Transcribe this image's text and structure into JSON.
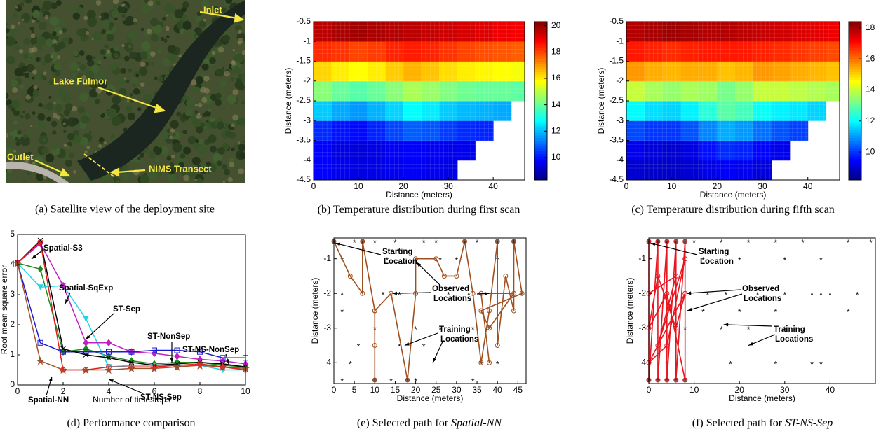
{
  "image": {
    "labels": [
      "Inlet",
      "Lake Fulmor",
      "Outlet",
      "NIMS Transect"
    ],
    "caption": "(a) Satellite view of the deployment site"
  },
  "chart_data": [
    {
      "type": "heatmap",
      "caption": "(b) Temperature distribution during first scan",
      "x_label": "Distance (meters)",
      "y_label": "Distance (meters)",
      "xlim": [
        0,
        47
      ],
      "ylim": [
        -4.5,
        -0.5
      ],
      "xticks": [
        0,
        10,
        20,
        30,
        40
      ],
      "yticks": [
        -4.5,
        -4,
        -3.5,
        -3,
        -2.5,
        -2,
        -1.5,
        -1,
        -0.5
      ],
      "clim": [
        8.3,
        20.3
      ],
      "cticks": [
        10,
        12,
        14,
        16,
        18,
        20
      ],
      "colormap": "jet",
      "x_edges": [
        0,
        4,
        8,
        12,
        16,
        20,
        24,
        28,
        32,
        36,
        40,
        44,
        47
      ],
      "y_edges": [
        -4.5,
        -4,
        -3.5,
        -3,
        -2.5,
        -2,
        -1.5,
        -1,
        -0.5
      ],
      "values": [
        [
          9.8,
          9.6,
          9.5,
          9.5,
          9.6,
          9.7,
          9.6,
          9.5,
          null,
          null,
          null,
          null
        ],
        [
          9.8,
          9.5,
          9.4,
          9.5,
          9.7,
          9.8,
          9.7,
          9.6,
          9.6,
          null,
          null,
          null
        ],
        [
          10.3,
          10.0,
          9.9,
          10.2,
          10.6,
          10.9,
          10.8,
          10.5,
          10.3,
          10.2,
          null,
          null
        ],
        [
          12.2,
          11.8,
          11.6,
          11.9,
          12.3,
          12.8,
          12.6,
          12.2,
          12.0,
          11.9,
          11.8,
          null
        ],
        [
          14.4,
          14.0,
          13.8,
          14.0,
          14.4,
          14.8,
          14.6,
          14.3,
          14.1,
          14.0,
          14.0,
          13.9
        ],
        [
          16.3,
          16.0,
          15.8,
          16.0,
          16.4,
          16.7,
          16.5,
          16.2,
          16.0,
          15.9,
          15.8,
          15.7
        ],
        [
          18.3,
          18.2,
          18.0,
          18.1,
          18.4,
          18.5,
          18.4,
          18.2,
          18.0,
          17.9,
          17.8,
          17.7
        ],
        [
          19.6,
          19.8,
          19.9,
          19.8,
          19.7,
          19.6,
          19.5,
          19.4,
          19.3,
          19.2,
          19.0,
          18.9
        ]
      ]
    },
    {
      "type": "heatmap",
      "caption": "(c) Temperature distribution during fifth scan",
      "x_label": "Distance (meters)",
      "y_label": "Distance (meters)",
      "xlim": [
        0,
        47
      ],
      "ylim": [
        -4.5,
        -0.5
      ],
      "xticks": [
        0,
        10,
        20,
        30,
        40
      ],
      "yticks": [
        -4.5,
        -4,
        -3.5,
        -3,
        -2.5,
        -2,
        -1.5,
        -1,
        -0.5
      ],
      "clim": [
        8.2,
        18.4
      ],
      "cticks": [
        10,
        12,
        14,
        16,
        18
      ],
      "colormap": "jet",
      "x_edges": [
        0,
        4,
        8,
        12,
        16,
        20,
        24,
        28,
        32,
        36,
        40,
        44,
        47
      ],
      "y_edges": [
        -4.5,
        -4,
        -3.5,
        -3,
        -2.5,
        -2,
        -1.5,
        -1,
        -0.5
      ],
      "values": [
        [
          9.0,
          8.9,
          8.9,
          9.0,
          9.2,
          9.4,
          9.3,
          9.1,
          null,
          null,
          null,
          null
        ],
        [
          9.3,
          9.1,
          9.0,
          9.2,
          9.6,
          9.9,
          9.8,
          9.5,
          9.3,
          null,
          null,
          null
        ],
        [
          10.2,
          10.0,
          10.0,
          10.3,
          10.8,
          11.2,
          11.0,
          10.6,
          10.3,
          10.1,
          null,
          null
        ],
        [
          12.0,
          11.7,
          11.6,
          11.9,
          12.4,
          12.9,
          12.7,
          12.1,
          11.9,
          11.8,
          11.6,
          null
        ],
        [
          14.0,
          13.7,
          13.5,
          13.7,
          13.6,
          13.2,
          13.5,
          14.0,
          14.0,
          13.9,
          13.8,
          13.7
        ],
        [
          15.6,
          15.4,
          15.3,
          15.4,
          15.4,
          15.2,
          15.3,
          15.6,
          15.5,
          15.4,
          15.3,
          15.2
        ],
        [
          16.9,
          16.8,
          16.7,
          16.8,
          16.9,
          16.9,
          16.9,
          16.8,
          16.7,
          16.6,
          16.5,
          16.4
        ],
        [
          17.9,
          18.0,
          18.1,
          18.0,
          17.9,
          17.9,
          17.8,
          17.7,
          17.6,
          17.5,
          17.4,
          17.3
        ]
      ]
    },
    {
      "type": "line",
      "caption": "(d) Performance comparison",
      "x_label": "Number of timesteps",
      "y_label": "Root mean square error",
      "x": [
        0,
        1,
        2,
        3,
        4,
        5,
        6,
        7,
        8,
        9,
        10
      ],
      "xlim": [
        0,
        10
      ],
      "ylim": [
        0,
        5
      ],
      "xticks": [
        0,
        2,
        4,
        6,
        8,
        10
      ],
      "yticks": [
        0,
        1,
        2,
        3,
        4,
        5
      ],
      "series": [
        {
          "name": "Spatial-S3",
          "color": "#1e8a1e",
          "marker": "diamond",
          "values": [
            4.05,
            3.85,
            1.1,
            1.2,
            0.95,
            0.8,
            0.7,
            0.75,
            0.75,
            0.65,
            0.6
          ]
        },
        {
          "name": "Spatial-SqExp",
          "color": "#22d3e6",
          "marker": "triangle",
          "values": [
            4.05,
            3.25,
            3.3,
            2.2,
            0.6,
            0.65,
            0.65,
            0.65,
            0.65,
            0.5,
            0.5
          ]
        },
        {
          "name": "ST-Sep",
          "color": "#c020c0",
          "marker": "diamond",
          "values": [
            4.05,
            4.7,
            3.3,
            1.4,
            1.4,
            1.1,
            1.05,
            0.95,
            0.85,
            0.8,
            0.7
          ]
        },
        {
          "name": "ST-NonSep",
          "color": "#1a1ad0",
          "marker": "square",
          "values": [
            4.05,
            1.4,
            1.1,
            1.1,
            1.1,
            1.1,
            1.15,
            1.15,
            1.1,
            0.9,
            0.9
          ]
        },
        {
          "name": "ST-NS-NonSep",
          "color": "#000000",
          "marker": "x",
          "values": [
            4.05,
            4.8,
            1.2,
            1.0,
            0.9,
            0.75,
            0.65,
            0.7,
            0.75,
            0.7,
            0.6
          ]
        },
        {
          "name": "Spatial-NN",
          "color": "#a0522d",
          "marker": "star",
          "values": [
            4.05,
            0.8,
            0.5,
            0.5,
            0.5,
            0.55,
            0.55,
            0.6,
            0.65,
            0.6,
            0.55
          ]
        },
        {
          "name": "ST-NS-Sep",
          "color": "#e02020",
          "marker": "circle",
          "values": [
            4.05,
            4.75,
            0.5,
            0.5,
            0.6,
            0.6,
            0.6,
            0.65,
            0.7,
            0.6,
            0.5
          ]
        }
      ]
    },
    {
      "type": "path",
      "caption": "(e) Selected path for",
      "caption_emphasis": "Spatial-NN",
      "x_label": "Distance (meters)",
      "y_label": "Distance (meters)",
      "xlim": [
        0,
        47
      ],
      "ylim": [
        -4.6,
        -0.4
      ],
      "xticks": [
        0,
        5,
        10,
        15,
        20,
        25,
        30,
        35,
        40,
        45
      ],
      "yticks": [
        -4,
        -3,
        -2,
        -1
      ],
      "annotations": [
        [
          "Starting",
          "Location"
        ],
        [
          "Observed",
          "Locations"
        ],
        [
          "Training",
          "Locations"
        ]
      ],
      "training": {
        "x": [
          5,
          10,
          15,
          22,
          25,
          35,
          44,
          2,
          13,
          26,
          30,
          40,
          2,
          12,
          16,
          28,
          33,
          46,
          2,
          10,
          20,
          26,
          34,
          38,
          6,
          16,
          22,
          4,
          36,
          2,
          14,
          20,
          34,
          40
        ],
        "y": [
          -0.5,
          -0.5,
          -0.5,
          -0.5,
          -0.5,
          -0.5,
          -0.5,
          -1,
          -1,
          -1,
          -1,
          -1,
          -2,
          -2,
          -2,
          -2,
          -2,
          -2,
          -2.5,
          -3,
          -3,
          -3,
          -3,
          -3,
          -3.5,
          -3.5,
          -3.5,
          -4,
          -4,
          -4.5,
          -4.5,
          -4.5,
          -4.5,
          -4
        ]
      },
      "path": {
        "color": "#a0501e",
        "x": [
          0,
          4,
          7,
          7,
          10,
          10,
          10,
          10,
          14,
          18,
          20,
          20,
          25,
          27,
          30,
          32,
          34,
          36,
          38,
          40,
          40,
          42,
          44,
          44,
          46,
          36,
          38,
          44,
          36,
          38
        ],
        "y": [
          -0.5,
          -1.5,
          -2,
          -0.5,
          -2.5,
          -3.5,
          -4.5,
          -2.5,
          -2,
          -4.5,
          -2,
          -1,
          -1,
          -1.5,
          -1.5,
          -0.5,
          -2,
          -4,
          -2.5,
          -0.5,
          -3.5,
          -1.5,
          -2.5,
          -0.5,
          -2,
          -2.5,
          -3,
          -2,
          -2,
          -4
        ]
      }
    },
    {
      "type": "path",
      "caption": "(f) Selected path for",
      "caption_emphasis": "ST-NS-Sep",
      "x_label": "Distance (meters)",
      "y_label": "Distance (meters)",
      "xlim": [
        0,
        50
      ],
      "ylim": [
        -4.6,
        -0.4
      ],
      "xticks": [
        0,
        10,
        20,
        30,
        40
      ],
      "yticks": [
        -4,
        -3,
        -2,
        -1
      ],
      "annotations": [
        [
          "Starting",
          "Location"
        ],
        [
          "Observed",
          "Locations"
        ],
        [
          "Training",
          "Locations"
        ]
      ],
      "training": {
        "x": [
          2,
          10,
          16,
          22,
          28,
          34,
          44,
          49,
          12,
          20,
          30,
          38,
          13,
          17,
          24,
          30,
          36,
          38,
          40,
          46,
          2,
          12,
          20,
          28,
          44,
          8,
          16,
          22,
          30,
          4,
          18,
          28,
          36,
          38
        ],
        "y": [
          -0.5,
          -0.5,
          -0.5,
          -0.5,
          -0.5,
          -0.5,
          -0.5,
          -0.5,
          -1,
          -1,
          -1,
          -1,
          -2,
          -2,
          -2,
          -2,
          -2,
          -2,
          -2,
          -2,
          -2.5,
          -2.5,
          -2.5,
          -2.5,
          -2.5,
          -3,
          -3,
          -3,
          -3,
          -4,
          -4,
          -4,
          -4,
          -4
        ]
      },
      "path": {
        "color": "#e8141e",
        "x": [
          0,
          0,
          2,
          2,
          4,
          4,
          6,
          6,
          8,
          8,
          4,
          0,
          2,
          6,
          8,
          0,
          4,
          8,
          2,
          6,
          0
        ],
        "y": [
          -0.5,
          -4.5,
          -0.5,
          -4.5,
          -0.5,
          -4.5,
          -0.5,
          -4.5,
          -0.5,
          -4.5,
          -2,
          -3,
          -1.5,
          -3,
          -2,
          -4,
          -3.5,
          -1,
          -3.5,
          -1.5,
          -2
        ]
      }
    }
  ]
}
